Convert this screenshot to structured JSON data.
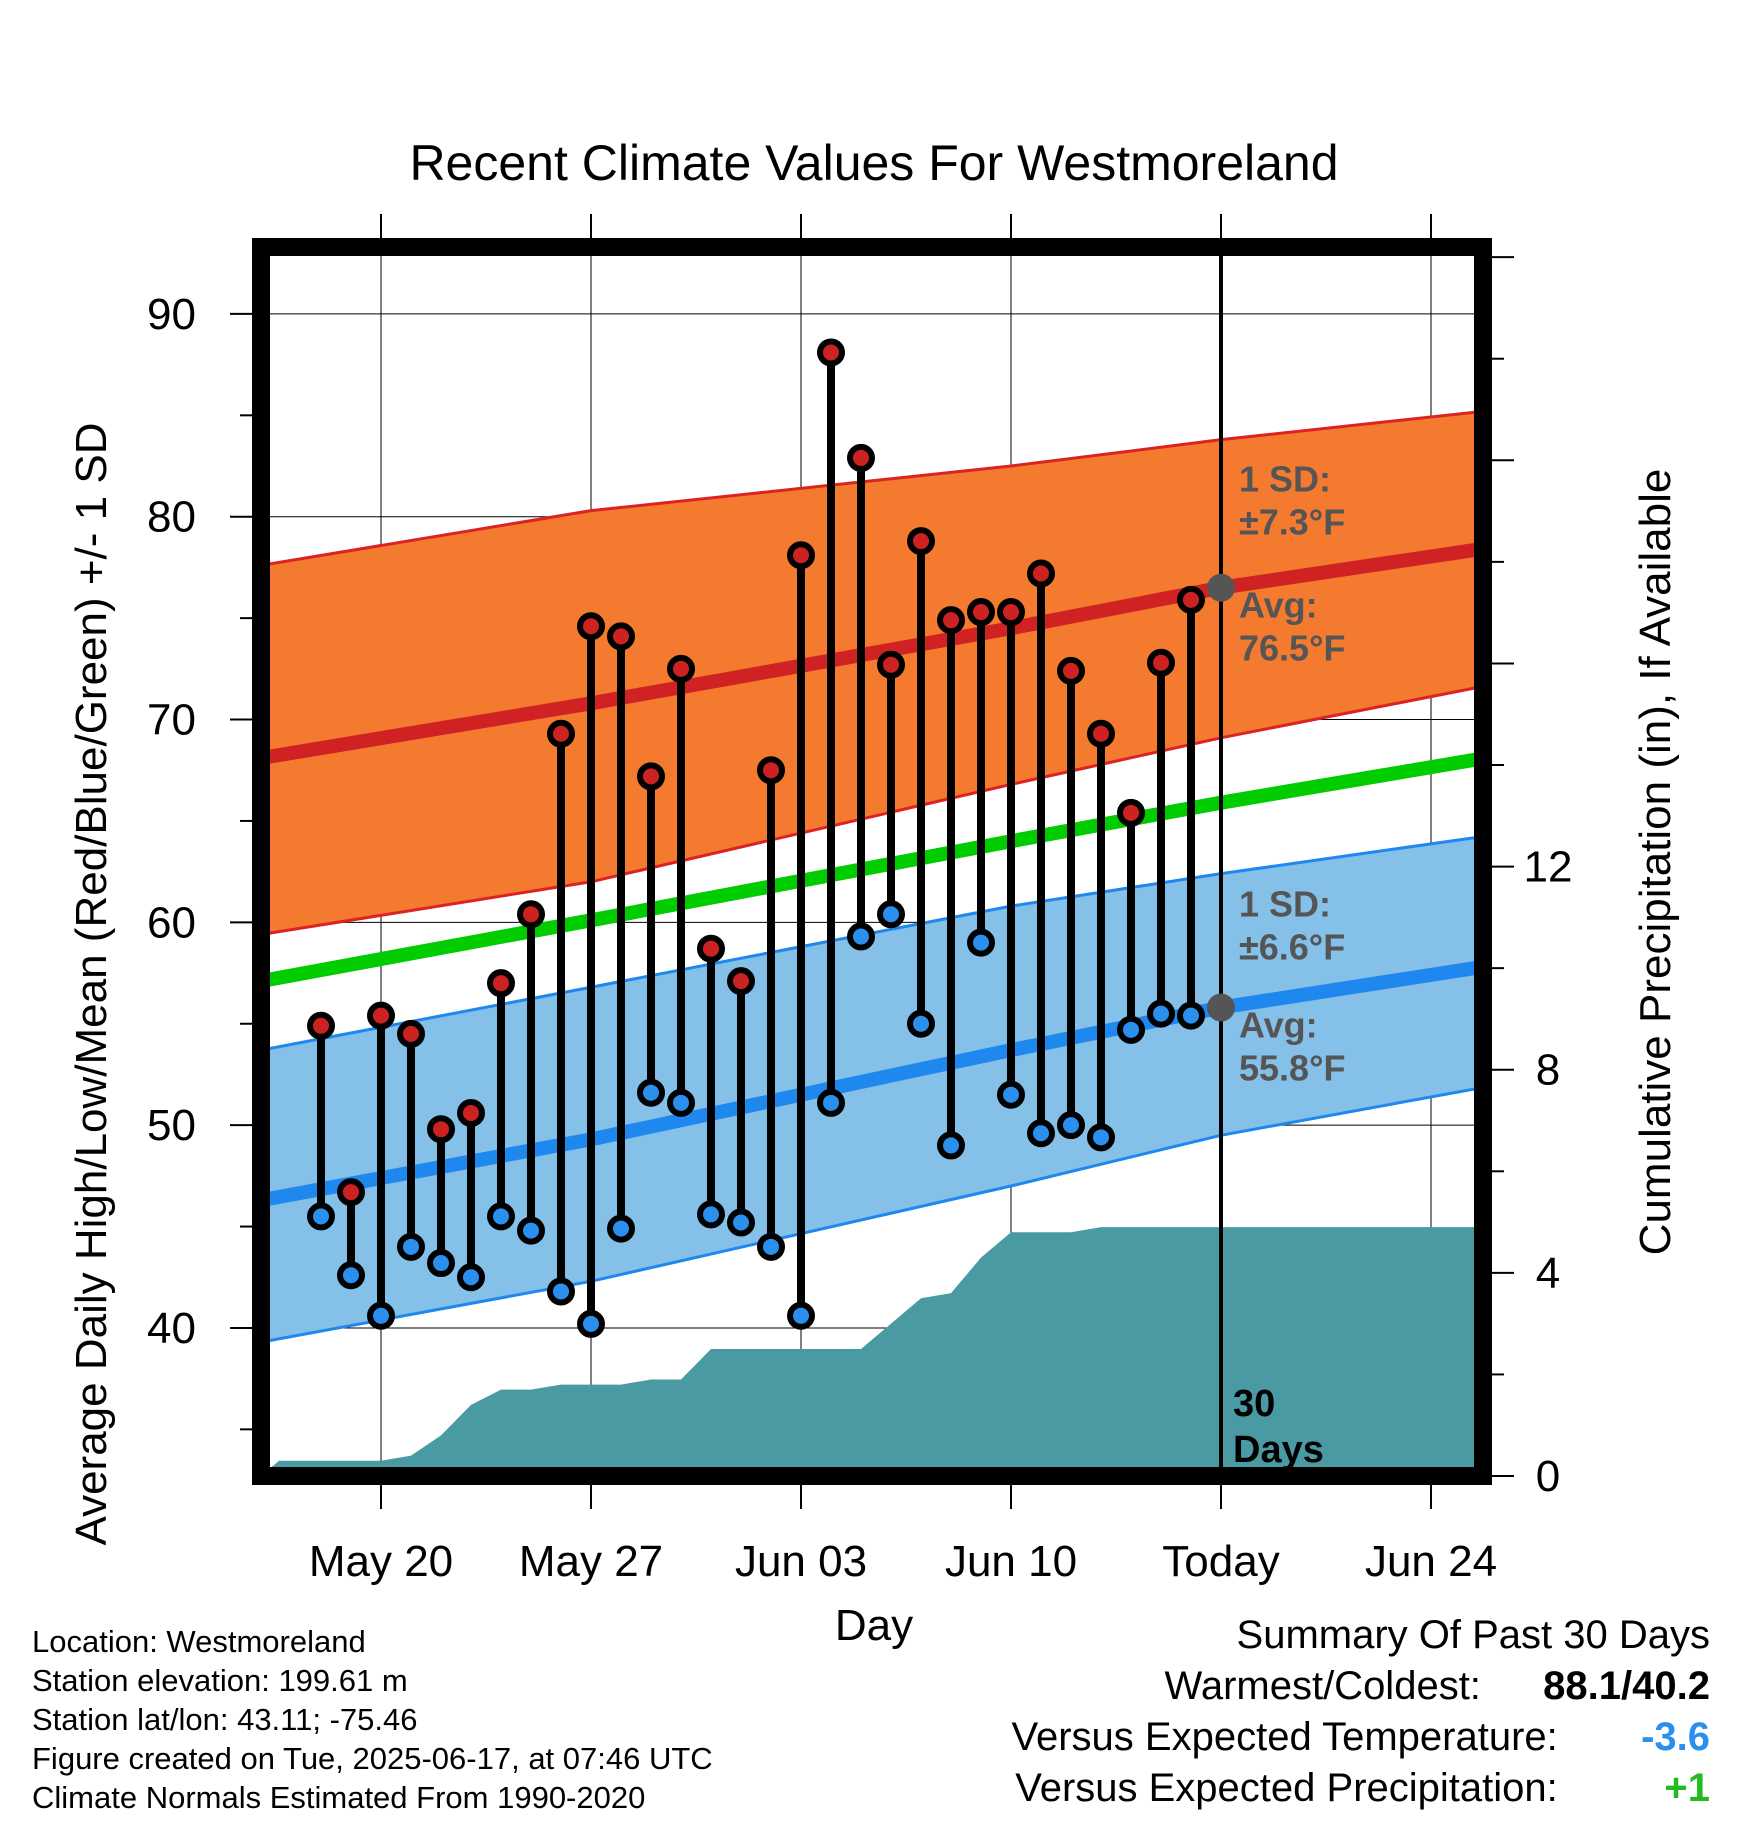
{
  "colors": {
    "high_dot": "#cc2222",
    "low_dot": "#2b8fee",
    "high_band": "#f47a30",
    "low_band": "#84c0e8",
    "mean_line": "#00cc00",
    "precip_fill": "#4a9aa4",
    "band_annotation": "#555555",
    "warmcold_value": "#000000",
    "temp_departure": "#2b8fee",
    "precip_departure": "#22bb22"
  },
  "chart_data": {
    "type": "line",
    "title": "Recent Climate Values For Westmoreland",
    "xlabel": "Day",
    "ylabel": "Average Daily High/Low/Mean (Red/Blue/Green) +/- 1 SD",
    "y2label": "Cumulative Precipitation (in), If Available",
    "ylim": [
      32.7,
      93.3
    ],
    "y_ticks": [
      40,
      50,
      60,
      70,
      80,
      90
    ],
    "y2lim": [
      0,
      24.2
    ],
    "y2_ticks": [
      0,
      4,
      8,
      12
    ],
    "x_range": [
      "2025-05-16",
      "2025-06-27"
    ],
    "x_ticks": [
      {
        "date": "2025-05-20",
        "label": "May 20"
      },
      {
        "date": "2025-05-27",
        "label": "May 27"
      },
      {
        "date": "2025-06-03",
        "label": "Jun 03"
      },
      {
        "date": "2025-06-10",
        "label": "Jun 10"
      },
      {
        "date": "2025-06-17",
        "label": "Today"
      },
      {
        "date": "2025-06-24",
        "label": "Jun 24"
      }
    ],
    "today": "2025-06-17",
    "days_label": [
      "30",
      "Days"
    ],
    "grid": true,
    "daily": [
      {
        "date": "2025-05-18",
        "high": 54.9,
        "low": 45.5
      },
      {
        "date": "2025-05-19",
        "high": 46.7,
        "low": 42.6
      },
      {
        "date": "2025-05-20",
        "high": 55.4,
        "low": 40.6
      },
      {
        "date": "2025-05-21",
        "high": 54.5,
        "low": 44.0
      },
      {
        "date": "2025-05-22",
        "high": 49.8,
        "low": 43.2
      },
      {
        "date": "2025-05-23",
        "high": 50.6,
        "low": 42.5
      },
      {
        "date": "2025-05-24",
        "high": 57.0,
        "low": 45.5
      },
      {
        "date": "2025-05-25",
        "high": 60.4,
        "low": 44.8
      },
      {
        "date": "2025-05-26",
        "high": 69.3,
        "low": 41.8
      },
      {
        "date": "2025-05-27",
        "high": 74.6,
        "low": 40.2
      },
      {
        "date": "2025-05-28",
        "high": 74.1,
        "low": 44.9
      },
      {
        "date": "2025-05-29",
        "high": 67.2,
        "low": 51.6
      },
      {
        "date": "2025-05-30",
        "high": 72.5,
        "low": 51.1
      },
      {
        "date": "2025-05-31",
        "high": 58.7,
        "low": 45.6
      },
      {
        "date": "2025-06-01",
        "high": 57.1,
        "low": 45.2
      },
      {
        "date": "2025-06-02",
        "high": 67.5,
        "low": 44.0
      },
      {
        "date": "2025-06-03",
        "high": 78.1,
        "low": 40.6
      },
      {
        "date": "2025-06-04",
        "high": 88.1,
        "low": 51.1
      },
      {
        "date": "2025-06-05",
        "high": 82.9,
        "low": 59.3
      },
      {
        "date": "2025-06-06",
        "high": 72.7,
        "low": 60.4
      },
      {
        "date": "2025-06-07",
        "high": 78.8,
        "low": 55.0
      },
      {
        "date": "2025-06-08",
        "high": 74.9,
        "low": 49.0
      },
      {
        "date": "2025-06-09",
        "high": 75.3,
        "low": 59.0
      },
      {
        "date": "2025-06-10",
        "high": 75.3,
        "low": 51.5
      },
      {
        "date": "2025-06-11",
        "high": 77.2,
        "low": 49.6
      },
      {
        "date": "2025-06-12",
        "high": 72.4,
        "low": 50.0
      },
      {
        "date": "2025-06-13",
        "high": 69.3,
        "low": 49.4
      },
      {
        "date": "2025-06-14",
        "high": 65.4,
        "low": 54.7
      },
      {
        "date": "2025-06-15",
        "high": 72.8,
        "low": 55.5
      },
      {
        "date": "2025-06-16",
        "high": 75.9,
        "low": 55.4
      }
    ],
    "normals": {
      "dates": [
        "2025-05-16",
        "2025-05-27",
        "2025-06-10",
        "2025-06-17",
        "2025-06-27"
      ],
      "high_avg": [
        68.1,
        70.8,
        74.5,
        76.5,
        78.7
      ],
      "high_sd_upper": [
        77.6,
        80.3,
        82.5,
        83.8,
        85.4
      ],
      "high_sd_lower": [
        59.4,
        62.0,
        66.8,
        69.1,
        72.0
      ],
      "low_avg": [
        46.3,
        49.3,
        53.7,
        55.8,
        58.1
      ],
      "low_sd_upper": [
        53.7,
        56.8,
        60.8,
        62.4,
        64.5
      ],
      "low_sd_lower": [
        39.3,
        42.3,
        47.0,
        49.5,
        52.2
      ],
      "mean": [
        57.1,
        60.1,
        64.0,
        65.9,
        68.4
      ]
    },
    "annotations": {
      "high_sd_label": "1 SD:",
      "high_sd_value": "±7.3°F",
      "high_avg_label": "Avg:",
      "high_avg_value": "76.5°F",
      "low_sd_label": "1 SD:",
      "low_sd_value": "±6.6°F",
      "low_avg_label": "Avg:",
      "low_avg_value": "55.8°F"
    },
    "precip_cumulative": [
      {
        "date": "2025-05-16",
        "value": 0.0
      },
      {
        "date": "2025-05-16.6",
        "value": 0.3
      },
      {
        "date": "2025-05-20",
        "value": 0.3
      },
      {
        "date": "2025-05-21",
        "value": 0.4
      },
      {
        "date": "2025-05-22",
        "value": 0.8
      },
      {
        "date": "2025-05-23",
        "value": 1.4
      },
      {
        "date": "2025-05-24",
        "value": 1.7
      },
      {
        "date": "2025-05-25",
        "value": 1.7
      },
      {
        "date": "2025-05-26",
        "value": 1.8
      },
      {
        "date": "2025-05-28",
        "value": 1.8
      },
      {
        "date": "2025-05-29",
        "value": 1.9
      },
      {
        "date": "2025-05-30",
        "value": 1.9
      },
      {
        "date": "2025-05-31",
        "value": 2.5
      },
      {
        "date": "2025-06-02",
        "value": 2.5
      },
      {
        "date": "2025-06-05",
        "value": 2.5
      },
      {
        "date": "2025-06-06",
        "value": 3.0
      },
      {
        "date": "2025-06-07",
        "value": 3.5
      },
      {
        "date": "2025-06-08",
        "value": 3.6
      },
      {
        "date": "2025-06-09",
        "value": 4.3
      },
      {
        "date": "2025-06-10",
        "value": 4.8
      },
      {
        "date": "2025-06-12",
        "value": 4.8
      },
      {
        "date": "2025-06-13",
        "value": 4.9
      },
      {
        "date": "2025-06-16",
        "value": 4.9
      },
      {
        "date": "2025-06-27",
        "value": 4.9
      }
    ]
  },
  "footer": {
    "lines": [
      "Location: Westmoreland",
      "Station elevation: 199.61 m",
      "Station lat/lon: 43.11; -75.46",
      "Figure created on Tue, 2025-06-17, at 07:46 UTC",
      "Climate Normals Estimated From 1990-2020"
    ]
  },
  "summary": {
    "title": "Summary Of Past 30 Days",
    "warmcold_label": "Warmest/Coldest:",
    "warmcold_value": "88.1/40.2",
    "temp_label": "Versus Expected Temperature:",
    "temp_value": "-3.6",
    "precip_label": "Versus Expected Precipitation:",
    "precip_value": "+1"
  }
}
